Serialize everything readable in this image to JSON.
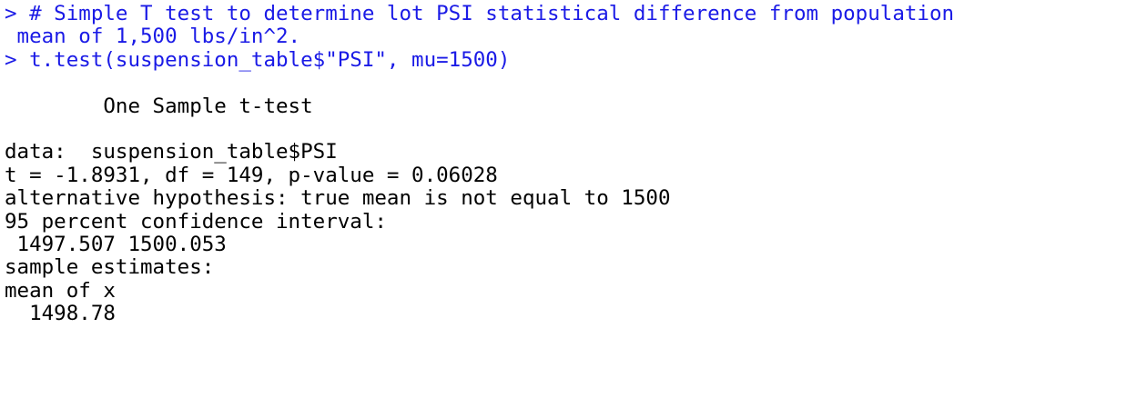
{
  "colors": {
    "input_text": "#1a1ae6",
    "output_text": "#000000",
    "background": "#ffffff"
  },
  "console": {
    "lines": [
      {
        "text": "> # Simple T test to determine lot PSI statistical difference from population",
        "kind": "input"
      },
      {
        "text": " mean of 1,500 lbs/in^2.",
        "kind": "input"
      },
      {
        "text": "> t.test(suspension_table$\"PSI\", mu=1500)",
        "kind": "input"
      },
      {
        "text": "",
        "kind": "output"
      },
      {
        "text": "        One Sample t-test",
        "kind": "output"
      },
      {
        "text": "",
        "kind": "output"
      },
      {
        "text": "data:  suspension_table$PSI",
        "kind": "output"
      },
      {
        "text": "t = -1.8931, df = 149, p-value = 0.06028",
        "kind": "output"
      },
      {
        "text": "alternative hypothesis: true mean is not equal to 1500",
        "kind": "output"
      },
      {
        "text": "95 percent confidence interval:",
        "kind": "output"
      },
      {
        "text": " 1497.507 1500.053",
        "kind": "output"
      },
      {
        "text": "sample estimates:",
        "kind": "output"
      },
      {
        "text": "mean of x ",
        "kind": "output"
      },
      {
        "text": "  1498.78 ",
        "kind": "output"
      }
    ]
  }
}
